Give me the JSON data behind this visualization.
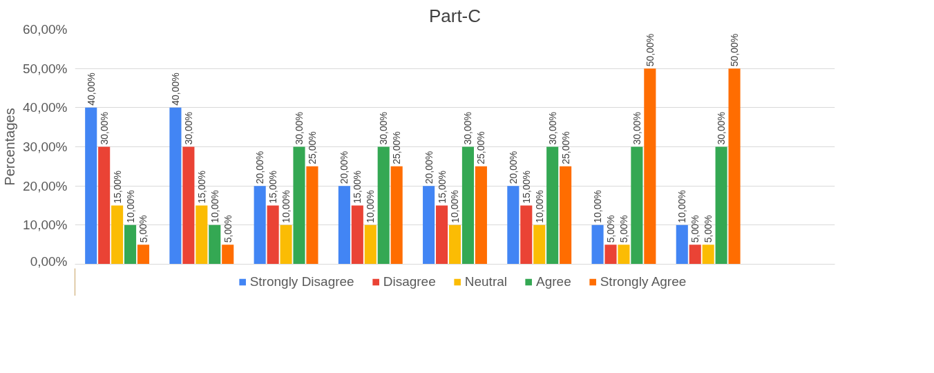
{
  "chart_data": {
    "type": "bar",
    "title": "Part-C",
    "ylabel": "Percentages",
    "categories": [
      null,
      null,
      null,
      null,
      null,
      null,
      null,
      null,
      null
    ],
    "series": [
      {
        "name": "Strongly Disagree",
        "color": "#4285f4",
        "values": [
          40,
          40,
          20,
          20,
          20,
          20,
          10,
          10,
          null
        ],
        "value_labels": [
          "40,00%",
          "40,00%",
          "20,00%",
          "20,00%",
          "20,00%",
          "20,00%",
          "10,00%",
          "10,00%",
          null
        ]
      },
      {
        "name": "Disagree",
        "color": "#ea4335",
        "values": [
          30,
          30,
          15,
          15,
          15,
          15,
          5,
          5,
          null
        ],
        "value_labels": [
          "30,00%",
          "30,00%",
          "15,00%",
          "15,00%",
          "15,00%",
          "15,00%",
          "5,00%",
          "5,00%",
          null
        ]
      },
      {
        "name": "Neutral",
        "color": "#fbbc04",
        "values": [
          15,
          15,
          10,
          10,
          10,
          10,
          5,
          5,
          null
        ],
        "value_labels": [
          "15,00%",
          "15,00%",
          "10,00%",
          "10,00%",
          "10,00%",
          "10,00%",
          "5,00%",
          "5,00%",
          null
        ]
      },
      {
        "name": "Agree",
        "color": "#34a853",
        "values": [
          10,
          10,
          30,
          30,
          30,
          30,
          30,
          30,
          null
        ],
        "value_labels": [
          "10,00%",
          "10,00%",
          "30,00%",
          "30,00%",
          "30,00%",
          "30,00%",
          "30,00%",
          "30,00%",
          null
        ]
      },
      {
        "name": "Strongly Agree",
        "color": "#ff6d01",
        "values": [
          5,
          5,
          25,
          25,
          25,
          25,
          50,
          50,
          null
        ],
        "value_labels": [
          "5,00%",
          "5,00%",
          "25,00%",
          "25,00%",
          "25,00%",
          "25,00%",
          "50,00%",
          "50,00%",
          null
        ]
      }
    ],
    "ylim": [
      0,
      60
    ],
    "yticks": [
      {
        "value": 0,
        "label": "0,00%"
      },
      {
        "value": 10,
        "label": "10,00%"
      },
      {
        "value": 20,
        "label": "20,00%"
      },
      {
        "value": 30,
        "label": "30,00%"
      },
      {
        "value": 40,
        "label": "40,00%"
      },
      {
        "value": 50,
        "label": "50,00%"
      },
      {
        "value": 60,
        "label": "60,00%"
      }
    ],
    "grid": "y",
    "legend": "bottom",
    "tick_labels": "y"
  }
}
